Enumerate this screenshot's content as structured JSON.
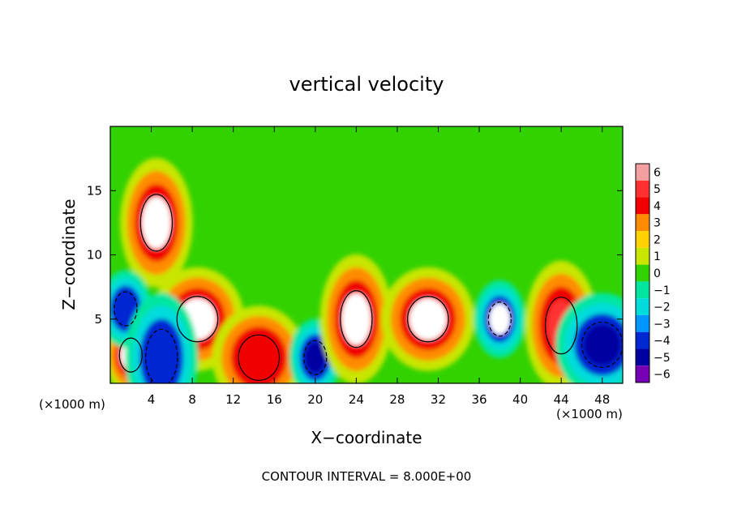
{
  "chart_data": {
    "type": "heatmap",
    "title": "vertical velocity",
    "xlabel": "X−coordinate",
    "ylabel": "Z−coordinate",
    "x_unit": "(×1000 m)",
    "footer": "CONTOUR INTERVAL =  8.000E+00",
    "xlim": [
      0,
      50
    ],
    "ylim": [
      0,
      20
    ],
    "x_ticks": [
      4,
      8,
      12,
      16,
      20,
      24,
      28,
      32,
      36,
      40,
      44,
      48
    ],
    "y_ticks": [
      5,
      10,
      15
    ],
    "colorbar": {
      "levels": [
        6,
        5,
        4,
        3,
        2,
        1,
        0,
        -1,
        -2,
        -3,
        -4,
        -5,
        -6
      ],
      "tick_labels": [
        "6",
        "5",
        "4",
        "3",
        "2",
        "1",
        "0",
        "−1",
        "−2",
        "−3",
        "−4",
        "−5",
        "−6"
      ],
      "colors": [
        "#f4a0a0",
        "#ff3030",
        "#f00000",
        "#ff8c00",
        "#ffd200",
        "#c8e600",
        "#32d200",
        "#00e6a0",
        "#00dcdc",
        "#0096ff",
        "#0028d2",
        "#0000a0",
        "#7800b4"
      ]
    },
    "features": [
      {
        "x": 2,
        "z": 2.2,
        "value": 6.5
      },
      {
        "x": 4.5,
        "z": 12.5,
        "value": 6.5
      },
      {
        "x": 8.5,
        "z": 5,
        "value": 6.5
      },
      {
        "x": 1.5,
        "z": 5.8,
        "value": -4
      },
      {
        "x": 5,
        "z": 2,
        "value": -4
      },
      {
        "x": 14.5,
        "z": 2,
        "value": 4
      },
      {
        "x": 20,
        "z": 2,
        "value": -5
      },
      {
        "x": 24,
        "z": 5,
        "value": 6.5
      },
      {
        "x": 31,
        "z": 5,
        "value": 6.5
      },
      {
        "x": 38,
        "z": 5,
        "value": -6.5
      },
      {
        "x": 44,
        "z": 4.5,
        "value": 5
      },
      {
        "x": 48,
        "z": 3,
        "value": -5
      }
    ]
  }
}
